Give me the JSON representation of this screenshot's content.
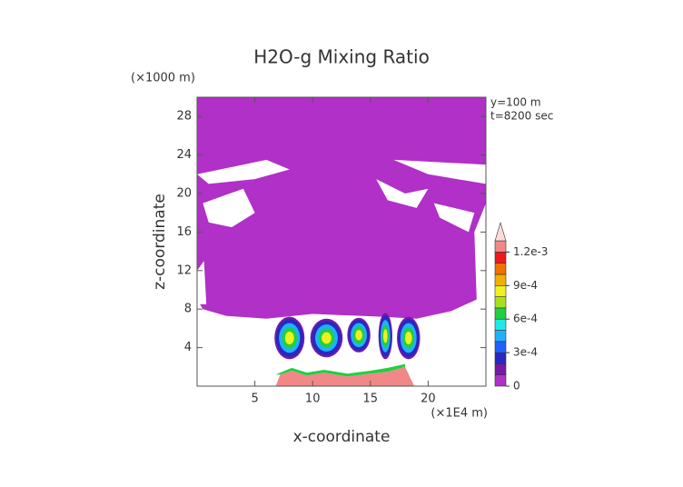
{
  "chart_data": {
    "type": "contour",
    "title": "H2O-g Mixing Ratio",
    "y_unit": "(×1000 m)",
    "x_unit": "(×1E4 m)",
    "xlabel": "x-coordinate",
    "ylabel": "z-coordinate",
    "annotations": [
      "y=100 m",
      "t=8200 sec"
    ],
    "xlim": [
      0,
      25
    ],
    "xticks": [
      5,
      10,
      15,
      20
    ],
    "ylim": [
      0,
      30
    ],
    "yticks": [
      4,
      8,
      12,
      16,
      20,
      24,
      28
    ],
    "levels": [
      0,
      0.0001,
      0.0002,
      0.0003,
      0.0004,
      0.0005,
      0.0006,
      0.0007,
      0.0008,
      0.0009,
      0.001,
      0.0011,
      0.0012
    ],
    "colors": [
      "#b030c8",
      "#7818a8",
      "#2828c0",
      "#2060ff",
      "#20b0ff",
      "#20e8e8",
      "#20d040",
      "#a8e020",
      "#f0f020",
      "#f0b000",
      "#f07000",
      "#f01818",
      "#f08888",
      "#fcdcd8"
    ],
    "colorbar_ticks": [
      0,
      {
        "value": 0.0003,
        "label": "3e-4"
      },
      {
        "value": 0.0006,
        "label": "6e-4"
      },
      {
        "value": 0.0009,
        "label": "9e-4"
      },
      {
        "value": 0.0012,
        "label": "1.2e-3"
      }
    ]
  }
}
